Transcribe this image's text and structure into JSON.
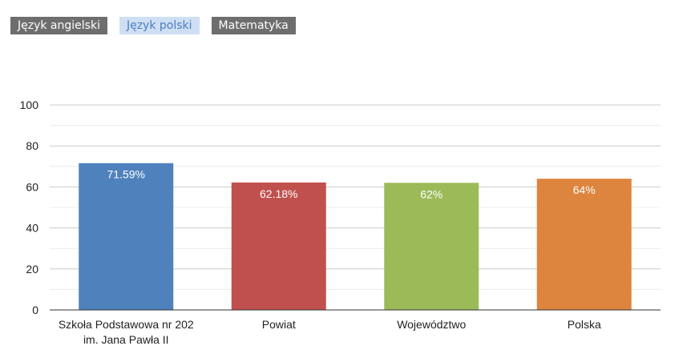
{
  "tabs": [
    {
      "label": "Język angielski",
      "active": false
    },
    {
      "label": "Język polski",
      "active": true
    },
    {
      "label": "Matematyka",
      "active": false
    }
  ],
  "chart_data": {
    "type": "bar",
    "categories": [
      "Szkoła Podstawowa nr 202\nim. Jana Pawła II",
      "Powiat",
      "Województwo",
      "Polska"
    ],
    "values": [
      71.59,
      62.18,
      62,
      64
    ],
    "value_labels": [
      "71.59%",
      "62.18%",
      "62%",
      "64%"
    ],
    "colors": [
      "#4f81bd",
      "#c0504d",
      "#9bbb59",
      "#dd843f"
    ],
    "ylim": [
      0,
      100
    ],
    "yticks": [
      "0",
      "20",
      "40",
      "60",
      "80",
      "100"
    ],
    "grid": true,
    "title": "",
    "xlabel": "",
    "ylabel": ""
  }
}
